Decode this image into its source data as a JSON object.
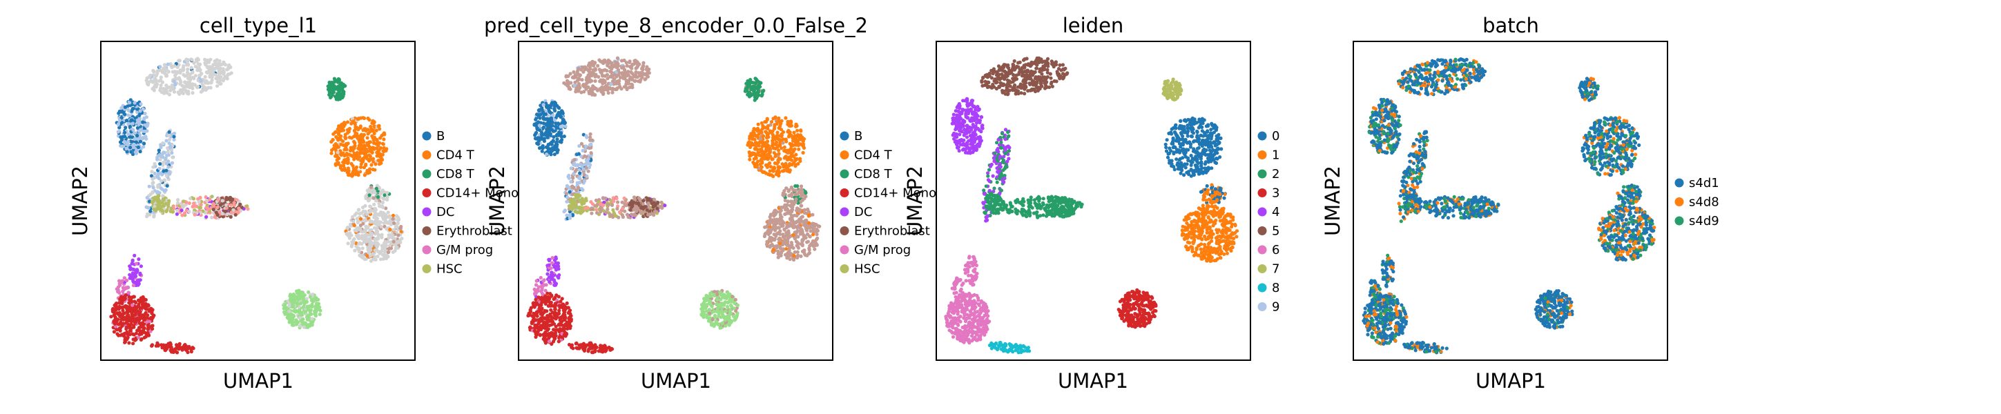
{
  "figure": {
    "panels": [
      {
        "title": "cell_type_l1",
        "xlabel": "UMAP1",
        "ylabel": "UMAP2",
        "legend": [
          {
            "label": "B",
            "color": "#1f77b4"
          },
          {
            "label": "CD4 T",
            "color": "#ff7f0e"
          },
          {
            "label": "CD8 T",
            "color": "#279e68"
          },
          {
            "label": "CD14+ Mono",
            "color": "#d62728"
          },
          {
            "label": "DC",
            "color": "#aa40fc"
          },
          {
            "label": "Erythroblast",
            "color": "#8c564b"
          },
          {
            "label": "G/M prog",
            "color": "#e377c2"
          },
          {
            "label": "HSC",
            "color": "#b5bd61"
          }
        ]
      },
      {
        "title": "pred_cell_type_8_encoder_0.0_False_2",
        "xlabel": "UMAP1",
        "ylabel": "UMAP2",
        "legend": [
          {
            "label": "B",
            "color": "#1f77b4"
          },
          {
            "label": "CD4 T",
            "color": "#ff7f0e"
          },
          {
            "label": "CD8 T",
            "color": "#279e68"
          },
          {
            "label": "CD14+ Mono",
            "color": "#d62728"
          },
          {
            "label": "DC",
            "color": "#aa40fc"
          },
          {
            "label": "Erythroblast",
            "color": "#8c564b"
          },
          {
            "label": "G/M prog",
            "color": "#e377c2"
          },
          {
            "label": "HSC",
            "color": "#b5bd61"
          }
        ]
      },
      {
        "title": "leiden",
        "xlabel": "UMAP1",
        "ylabel": "UMAP2",
        "legend": [
          {
            "label": "0",
            "color": "#1f77b4"
          },
          {
            "label": "1",
            "color": "#ff7f0e"
          },
          {
            "label": "2",
            "color": "#279e68"
          },
          {
            "label": "3",
            "color": "#d62728"
          },
          {
            "label": "4",
            "color": "#aa40fc"
          },
          {
            "label": "5",
            "color": "#8c564b"
          },
          {
            "label": "6",
            "color": "#e377c2"
          },
          {
            "label": "7",
            "color": "#b5bd61"
          },
          {
            "label": "8",
            "color": "#17becf"
          },
          {
            "label": "9",
            "color": "#aec7e8"
          }
        ]
      },
      {
        "title": "batch",
        "xlabel": "UMAP1",
        "ylabel": "UMAP2",
        "legend": [
          {
            "label": "s4d1",
            "color": "#1f77b4"
          },
          {
            "label": "s4d8",
            "color": "#ff7f0e"
          },
          {
            "label": "s4d9",
            "color": "#279e68"
          }
        ]
      }
    ]
  },
  "chart_data": [
    {
      "type": "scatter",
      "title": "cell_type_l1",
      "xlabel": "UMAP1",
      "ylabel": "UMAP2",
      "series": [
        {
          "name": "B",
          "color": "#1f77b4"
        },
        {
          "name": "CD4 T",
          "color": "#ff7f0e"
        },
        {
          "name": "CD8 T",
          "color": "#279e68"
        },
        {
          "name": "CD14+ Mono",
          "color": "#d62728"
        },
        {
          "name": "DC",
          "color": "#aa40fc"
        },
        {
          "name": "Erythroblast",
          "color": "#8c564b"
        },
        {
          "name": "G/M prog",
          "color": "#e377c2"
        },
        {
          "name": "HSC",
          "color": "#b5bd61"
        }
      ],
      "ticks": "none",
      "grid": false,
      "legend_position": "right"
    },
    {
      "type": "scatter",
      "title": "pred_cell_type_8_encoder_0.0_False_2",
      "xlabel": "UMAP1",
      "ylabel": "UMAP2",
      "series": [
        {
          "name": "B",
          "color": "#1f77b4"
        },
        {
          "name": "CD4 T",
          "color": "#ff7f0e"
        },
        {
          "name": "CD8 T",
          "color": "#279e68"
        },
        {
          "name": "CD14+ Mono",
          "color": "#d62728"
        },
        {
          "name": "DC",
          "color": "#aa40fc"
        },
        {
          "name": "Erythroblast",
          "color": "#8c564b"
        },
        {
          "name": "G/M prog",
          "color": "#e377c2"
        },
        {
          "name": "HSC",
          "color": "#b5bd61"
        }
      ],
      "ticks": "none",
      "grid": false,
      "legend_position": "right"
    },
    {
      "type": "scatter",
      "title": "leiden",
      "xlabel": "UMAP1",
      "ylabel": "UMAP2",
      "series": [
        {
          "name": "0",
          "color": "#1f77b4"
        },
        {
          "name": "1",
          "color": "#ff7f0e"
        },
        {
          "name": "2",
          "color": "#279e68"
        },
        {
          "name": "3",
          "color": "#d62728"
        },
        {
          "name": "4",
          "color": "#aa40fc"
        },
        {
          "name": "5",
          "color": "#8c564b"
        },
        {
          "name": "6",
          "color": "#e377c2"
        },
        {
          "name": "7",
          "color": "#b5bd61"
        },
        {
          "name": "8",
          "color": "#17becf"
        },
        {
          "name": "9",
          "color": "#aec7e8"
        }
      ],
      "ticks": "none",
      "grid": false,
      "legend_position": "right"
    },
    {
      "type": "scatter",
      "title": "batch",
      "xlabel": "UMAP1",
      "ylabel": "UMAP2",
      "series": [
        {
          "name": "s4d1",
          "color": "#1f77b4"
        },
        {
          "name": "s4d8",
          "color": "#ff7f0e"
        },
        {
          "name": "s4d9",
          "color": "#279e68"
        }
      ],
      "ticks": "none",
      "grid": false,
      "legend_position": "right"
    }
  ]
}
